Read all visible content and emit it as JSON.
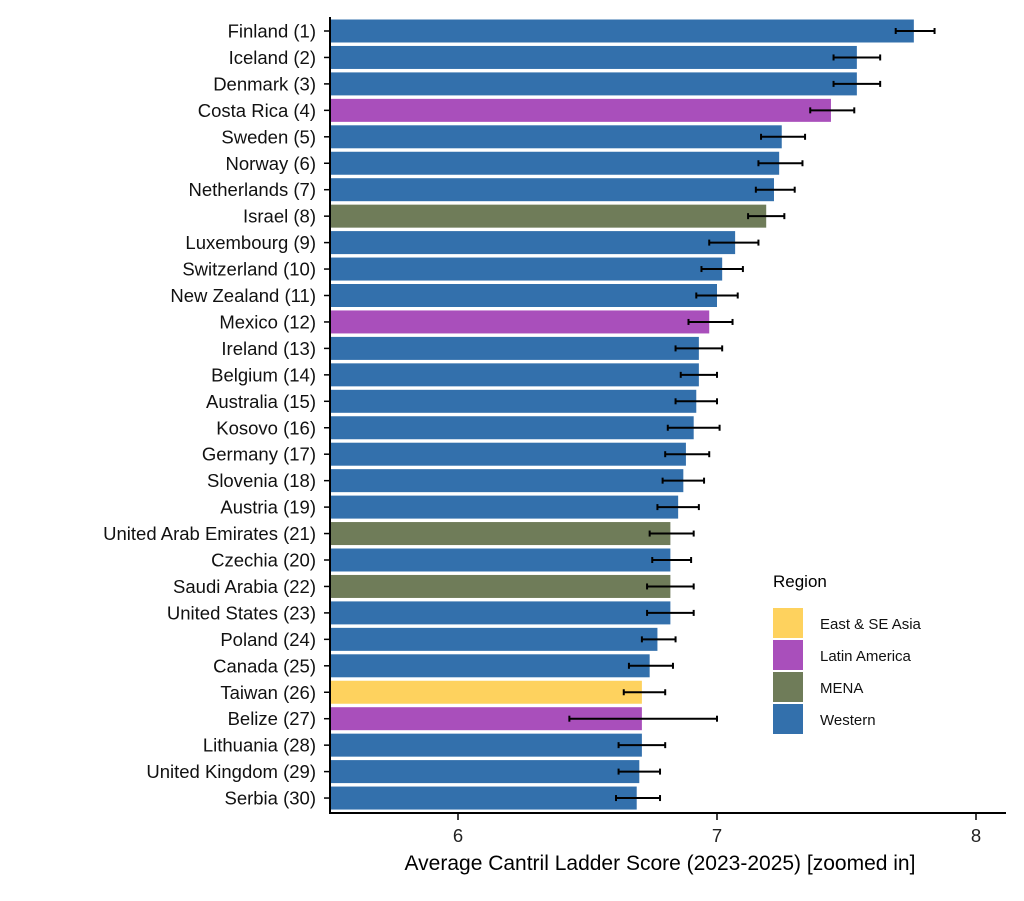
{
  "chart_data": {
    "type": "bar",
    "orientation": "horizontal",
    "xlabel": "Average Cantril Ladder Score (2023-2025) [zoomed in]",
    "ylabel": "",
    "xlim": [
      5.5,
      8.1
    ],
    "xticks": [
      6,
      7,
      8
    ],
    "grid": false,
    "legend": {
      "title": "Region",
      "placement": "bottom-right",
      "entries": [
        {
          "name": "East & SE Asia",
          "color": "#FED25E"
        },
        {
          "name": "Latin America",
          "color": "#A94FBB"
        },
        {
          "name": "MENA",
          "color": "#6F7C59"
        },
        {
          "name": "Western",
          "color": "#3370AC"
        }
      ]
    },
    "categories": [
      "Finland (1)",
      "Iceland (2)",
      "Denmark (3)",
      "Costa Rica (4)",
      "Sweden (5)",
      "Norway (6)",
      "Netherlands (7)",
      "Israel (8)",
      "Luxembourg (9)",
      "Switzerland (10)",
      "New Zealand (11)",
      "Mexico (12)",
      "Ireland (13)",
      "Belgium (14)",
      "Australia (15)",
      "Kosovo (16)",
      "Germany (17)",
      "Slovenia (18)",
      "Austria (19)",
      "United Arab Emirates (21)",
      "Czechia (20)",
      "Saudi Arabia (22)",
      "United States (23)",
      "Poland (24)",
      "Canada (25)",
      "Taiwan (26)",
      "Belize (27)",
      "Lithuania (28)",
      "United Kingdom (29)",
      "Serbia (30)"
    ],
    "regions": [
      "Western",
      "Western",
      "Western",
      "Latin America",
      "Western",
      "Western",
      "Western",
      "MENA",
      "Western",
      "Western",
      "Western",
      "Latin America",
      "Western",
      "Western",
      "Western",
      "Western",
      "Western",
      "Western",
      "Western",
      "MENA",
      "Western",
      "MENA",
      "Western",
      "Western",
      "Western",
      "East & SE Asia",
      "Latin America",
      "Western",
      "Western",
      "Western"
    ],
    "values": [
      7.76,
      7.54,
      7.54,
      7.44,
      7.25,
      7.24,
      7.22,
      7.19,
      7.07,
      7.02,
      7.0,
      6.97,
      6.93,
      6.93,
      6.92,
      6.91,
      6.88,
      6.87,
      6.85,
      6.82,
      6.82,
      6.82,
      6.82,
      6.77,
      6.74,
      6.71,
      6.71,
      6.71,
      6.7,
      6.69
    ],
    "error_low": [
      7.69,
      7.45,
      7.45,
      7.36,
      7.17,
      7.16,
      7.15,
      7.12,
      6.97,
      6.94,
      6.92,
      6.89,
      6.84,
      6.86,
      6.84,
      6.81,
      6.8,
      6.79,
      6.77,
      6.74,
      6.75,
      6.73,
      6.73,
      6.71,
      6.66,
      6.64,
      6.43,
      6.62,
      6.62,
      6.61
    ],
    "error_high": [
      7.84,
      7.63,
      7.63,
      7.53,
      7.34,
      7.33,
      7.3,
      7.26,
      7.16,
      7.1,
      7.08,
      7.06,
      7.02,
      7.0,
      7.0,
      7.01,
      6.97,
      6.95,
      6.93,
      6.91,
      6.9,
      6.91,
      6.91,
      6.84,
      6.83,
      6.8,
      7.0,
      6.8,
      6.78,
      6.78
    ]
  }
}
